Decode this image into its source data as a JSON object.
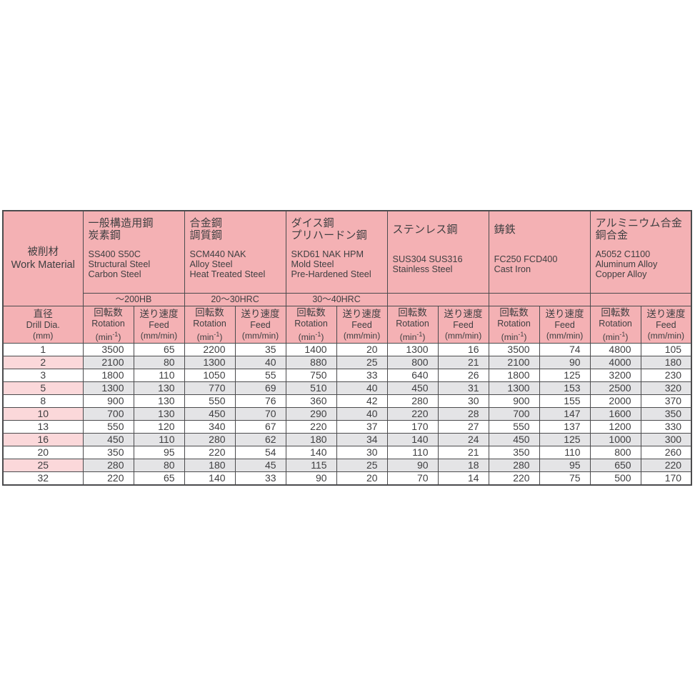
{
  "table": {
    "work_material_header": {
      "jp": "被削材",
      "en": "Work Material"
    },
    "drill_dia_header": {
      "jp": "直径",
      "en": "Drill Dia.",
      "unit": "(mm)"
    },
    "col_headers": {
      "rotation": {
        "jp": "回転数",
        "en": "Rotation",
        "unit_prefix": "(min",
        "unit_sup": "-1",
        "unit_suffix": ")"
      },
      "feed": {
        "jp": "送り速度",
        "en": "Feed",
        "unit": "(mm/min)"
      }
    },
    "materials": [
      {
        "jp": [
          "一般構造用鋼",
          "炭素鋼"
        ],
        "en": [
          "SS400 S50C",
          "Structural Steel",
          "Carbon Steel"
        ],
        "hardness": "～200HB"
      },
      {
        "jp": [
          "合金鋼",
          "調質鋼"
        ],
        "en": [
          "SCM440 NAK",
          "Alloy Steel",
          "Heat Treated Steel"
        ],
        "hardness": "20～30HRC"
      },
      {
        "jp": [
          "ダイス鋼",
          "プリハードン鋼"
        ],
        "en": [
          "SKD61 NAK HPM",
          "Mold Steel",
          "Pre-Hardened Steel"
        ],
        "hardness": "30～40HRC"
      },
      {
        "jp": [
          "ステンレス鋼"
        ],
        "en": [
          "SUS304 SUS316",
          "Stainless Steel"
        ],
        "hardness": ""
      },
      {
        "jp": [
          "鋳鉄"
        ],
        "en": [
          "FC250  FCD400",
          "Cast Iron"
        ],
        "hardness": ""
      },
      {
        "jp": [
          "アルミニウム合金",
          "銅合金"
        ],
        "en": [
          "A5052 C1100",
          "Aluminum Alloy",
          "Copper Alloy"
        ],
        "hardness": ""
      }
    ],
    "rows": [
      {
        "dia": "1",
        "values": [
          "3500",
          "65",
          "2200",
          "35",
          "1400",
          "20",
          "1300",
          "16",
          "3500",
          "74",
          "4800",
          "105"
        ]
      },
      {
        "dia": "2",
        "values": [
          "2100",
          "80",
          "1300",
          "40",
          "880",
          "25",
          "800",
          "21",
          "2100",
          "90",
          "4000",
          "180"
        ]
      },
      {
        "dia": "3",
        "values": [
          "1800",
          "110",
          "1050",
          "55",
          "750",
          "33",
          "640",
          "26",
          "1800",
          "125",
          "3200",
          "230"
        ]
      },
      {
        "dia": "5",
        "values": [
          "1300",
          "130",
          "770",
          "69",
          "510",
          "40",
          "450",
          "31",
          "1300",
          "153",
          "2500",
          "320"
        ]
      },
      {
        "dia": "8",
        "values": [
          "900",
          "130",
          "550",
          "76",
          "360",
          "42",
          "280",
          "30",
          "900",
          "155",
          "2000",
          "370"
        ]
      },
      {
        "dia": "10",
        "values": [
          "700",
          "130",
          "450",
          "70",
          "290",
          "40",
          "220",
          "28",
          "700",
          "147",
          "1600",
          "350"
        ]
      },
      {
        "dia": "13",
        "values": [
          "550",
          "120",
          "340",
          "67",
          "220",
          "37",
          "170",
          "27",
          "550",
          "137",
          "1200",
          "330"
        ]
      },
      {
        "dia": "16",
        "values": [
          "450",
          "110",
          "280",
          "62",
          "180",
          "34",
          "140",
          "24",
          "450",
          "125",
          "1000",
          "300"
        ]
      },
      {
        "dia": "20",
        "values": [
          "350",
          "95",
          "220",
          "54",
          "140",
          "30",
          "110",
          "21",
          "350",
          "110",
          "800",
          "260"
        ]
      },
      {
        "dia": "25",
        "values": [
          "280",
          "80",
          "180",
          "45",
          "115",
          "25",
          "90",
          "18",
          "280",
          "95",
          "650",
          "220"
        ]
      },
      {
        "dia": "32",
        "values": [
          "220",
          "65",
          "140",
          "33",
          "90",
          "20",
          "70",
          "14",
          "220",
          "75",
          "500",
          "170"
        ]
      }
    ],
    "colors": {
      "header_pink": "#f4b1b4",
      "alt_row_pink": "#fbd8da",
      "alt_row_gray": "#e4e4e6",
      "border": "#4b4b4d",
      "text": "#3f3f41"
    }
  }
}
